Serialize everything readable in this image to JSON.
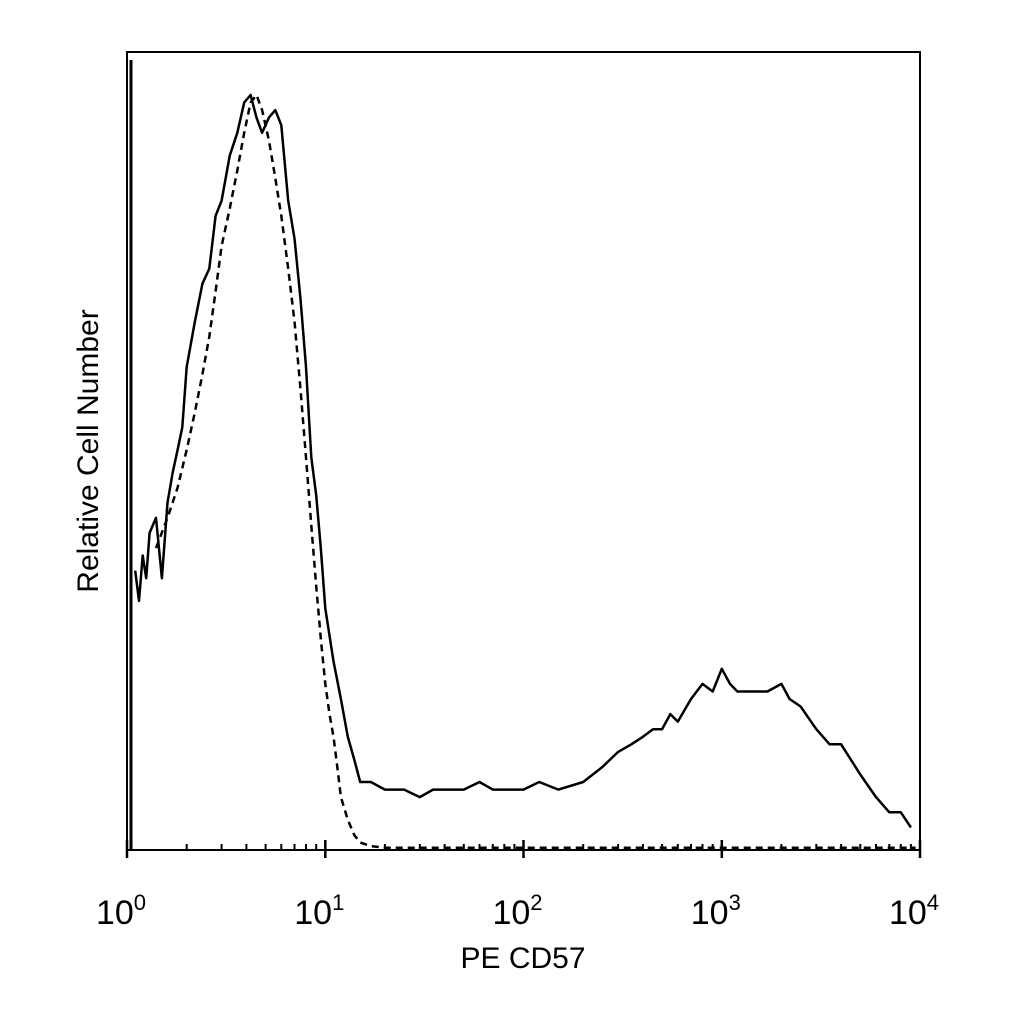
{
  "chart_data": {
    "type": "line",
    "title": "",
    "xlabel": "PE CD57",
    "ylabel": "Relative Cell Number",
    "x_scale": "log",
    "xlim": [
      1,
      10000
    ],
    "ylim": [
      0,
      100
    ],
    "grid": false,
    "legend": "none",
    "x_ticks": [
      {
        "value": 1,
        "base": "10",
        "exp": "0"
      },
      {
        "value": 10,
        "base": "10",
        "exp": "1"
      },
      {
        "value": 100,
        "base": "10",
        "exp": "2"
      },
      {
        "value": 1000,
        "base": "10",
        "exp": "3"
      },
      {
        "value": 10000,
        "base": "10",
        "exp": "4"
      }
    ],
    "series": [
      {
        "style": "solid",
        "color": "#000000",
        "x": [
          1.1,
          1.15,
          1.2,
          1.25,
          1.3,
          1.4,
          1.5,
          1.6,
          1.7,
          1.8,
          1.9,
          2.0,
          2.2,
          2.4,
          2.6,
          2.8,
          3.0,
          3.3,
          3.6,
          3.9,
          4.2,
          4.5,
          4.8,
          5.2,
          5.6,
          6.0,
          6.5,
          7.0,
          7.5,
          8.0,
          8.5,
          9.0,
          9.5,
          10,
          11,
          12,
          13,
          14,
          15,
          17,
          20,
          25,
          30,
          35,
          40,
          50,
          60,
          70,
          80,
          100,
          120,
          150,
          200,
          250,
          300,
          350,
          400,
          450,
          500,
          550,
          600,
          700,
          800,
          900,
          1000,
          1100,
          1200,
          1400,
          1700,
          2000,
          2200,
          2500,
          3000,
          3500,
          4000,
          5000,
          6000,
          7000,
          8000,
          9000
        ],
        "values": [
          37,
          33,
          39,
          36,
          42,
          44,
          36,
          46,
          50,
          53,
          56,
          64,
          70,
          75,
          77,
          84,
          86,
          92,
          95,
          99,
          100,
          97,
          95,
          97,
          98,
          96,
          86,
          81,
          73,
          64,
          52,
          47,
          40,
          32,
          25,
          20,
          15,
          12,
          9,
          9,
          8,
          8,
          7,
          8,
          8,
          8,
          9,
          8,
          8,
          8,
          9,
          8,
          9,
          11,
          13,
          14,
          15,
          16,
          16,
          18,
          17,
          20,
          22,
          21,
          24,
          22,
          21,
          21,
          21,
          22,
          20,
          19,
          16,
          14,
          14,
          10,
          7,
          5,
          5,
          3
        ]
      },
      {
        "style": "dashed",
        "color": "#000000",
        "x": [
          1.4,
          1.6,
          1.8,
          2.0,
          2.2,
          2.4,
          2.6,
          2.8,
          3.0,
          3.3,
          3.6,
          3.9,
          4.2,
          4.5,
          4.8,
          5.2,
          5.6,
          6.0,
          6.5,
          7.0,
          7.5,
          8.0,
          8.5,
          9.0,
          9.5,
          10,
          10.5,
          11,
          11.5,
          12,
          13,
          14,
          15,
          17,
          20,
          30,
          50,
          100,
          200,
          500,
          1000,
          2000,
          5000,
          9500
        ],
        "values": [
          40,
          44,
          48,
          53,
          58,
          63,
          68,
          74,
          80,
          85,
          90,
          95,
          99,
          100,
          98,
          94,
          89,
          84,
          77,
          70,
          61,
          52,
          43,
          35,
          28,
          22,
          18,
          15,
          11,
          7,
          4,
          2,
          1,
          0.5,
          0.3,
          0.3,
          0.3,
          0.3,
          0.3,
          0.3,
          0.3,
          0.3,
          0.3,
          0.3
        ]
      }
    ]
  }
}
